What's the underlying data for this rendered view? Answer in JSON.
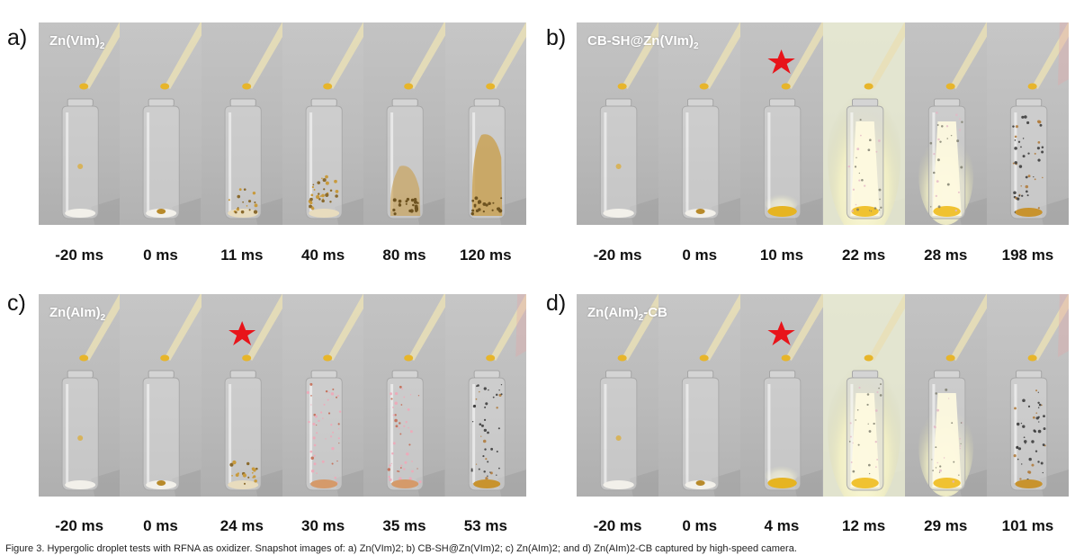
{
  "colors": {
    "background": "#c0c0c0",
    "label_text": "#ffffff",
    "star": "#e8141a",
    "powder": "#d7b35c",
    "flash": "#fffde0"
  },
  "panels": [
    {
      "letter": "a)",
      "label_main": "Zn(VIm)",
      "label_sub": "2",
      "label_tail": "",
      "star_frame": null,
      "times": [
        "-20 ms",
        "0 ms",
        "11 ms",
        "40 ms",
        "80 ms",
        "120 ms"
      ],
      "frame_states": [
        "drop",
        "powder-wet",
        "burn-low",
        "burn-mid",
        "smoke-mid",
        "smoke-high"
      ]
    },
    {
      "letter": "b)",
      "label_main": "CB-SH@Zn(VIm)",
      "label_sub": "2",
      "label_tail": "",
      "star_frame": 2,
      "times": [
        "-20 ms",
        "0 ms",
        "10 ms",
        "22 ms",
        "28 ms",
        "198 ms"
      ],
      "frame_states": [
        "drop",
        "powder-wet",
        "ignite",
        "flash-full",
        "flash-mid",
        "sparks-dark"
      ]
    },
    {
      "letter": "c)",
      "label_main": "Zn(AIm)",
      "label_sub": "2",
      "label_tail": "",
      "star_frame": 2,
      "times": [
        "-20 ms",
        "0 ms",
        "24 ms",
        "30 ms",
        "35 ms",
        "53 ms"
      ],
      "frame_states": [
        "drop",
        "powder-wet",
        "burn-low",
        "sparks-pink",
        "sparks-pink",
        "sparks-dark"
      ]
    },
    {
      "letter": "d)",
      "label_main": "Zn(AIm)",
      "label_sub": "2",
      "label_tail": "-CB",
      "star_frame": 2,
      "times": [
        "-20 ms",
        "0 ms",
        "4 ms",
        "12 ms",
        "29 ms",
        "101 ms"
      ],
      "frame_states": [
        "drop",
        "powder-wet",
        "ignite",
        "flash-full",
        "flash-mid",
        "sparks-dark"
      ]
    }
  ],
  "caption": "Figure 3. Hypergolic droplet tests with RFNA as oxidizer. Snapshot images of: a) Zn(VIm)2; b) CB-SH@Zn(VIm)2; c) Zn(AIm)2; and d) Zn(AIm)2-CB captured by high-speed camera."
}
